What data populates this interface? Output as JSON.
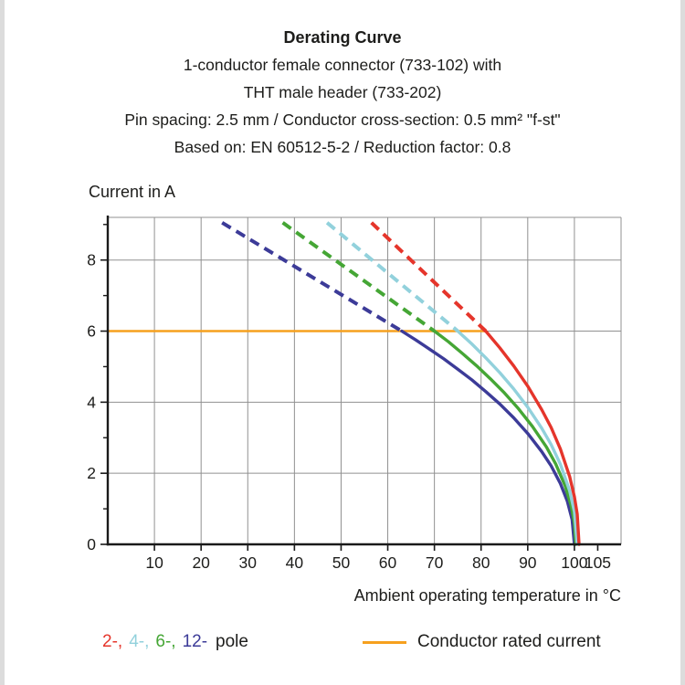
{
  "page": {
    "header": {
      "title": "Derating Curve",
      "lines": [
        "1-conductor female connector (733-102) with",
        "THT male header (733-202)",
        "Pin spacing: 2.5 mm / Conductor cross-section: 0.5 mm² \"f-st\"",
        "Based on: EN 60512-5-2 / Reduction factor: 0.8"
      ]
    },
    "y_axis_title": "Current in A",
    "x_axis_title": "Ambient operating temperature in °C"
  },
  "legend": {
    "pole_items": [
      {
        "label": "2-,",
        "color": "#e5352b"
      },
      {
        "label": "4-,",
        "color": "#92d1dc"
      },
      {
        "label": "6-,",
        "color": "#45a635"
      },
      {
        "label": "12-",
        "color": "#3c3b98"
      }
    ],
    "pole_suffix": "pole",
    "rated_label": "Conductor rated current",
    "rated_color": "#f6a01e"
  },
  "chart_data": {
    "type": "line",
    "title": "Derating Curve",
    "xlabel": "Ambient operating temperature in °C",
    "ylabel": "Current in A",
    "xlim": [
      0,
      110
    ],
    "ylim": [
      0,
      9.2
    ],
    "grid": true,
    "grid_x": [
      10,
      20,
      30,
      40,
      50,
      60,
      70,
      80,
      90,
      100,
      110
    ],
    "grid_y": [
      2,
      4,
      6,
      8
    ],
    "x_tick_labels": [
      10,
      20,
      30,
      40,
      50,
      60,
      70,
      80,
      90,
      100,
      105
    ],
    "y_major_ticks": [
      0,
      2,
      4,
      6,
      8
    ],
    "y_minor_ticks": [
      1,
      3,
      5,
      7,
      9
    ],
    "colors": {
      "grid": "#909090",
      "axis": "#1a1a1a",
      "text": "#1d1d1b"
    },
    "rated_current_line": {
      "name": "Conductor rated current",
      "color": "#f6a01e",
      "value_A": 6,
      "points": [
        [
          0,
          6
        ],
        [
          81,
          6
        ]
      ]
    },
    "series": [
      {
        "id": "12-pole",
        "name": "12-pole",
        "color": "#3c3b98",
        "dashed_points": [
          [
            24.5,
            9.05
          ],
          [
            63,
            6.0
          ]
        ],
        "solid_points": [
          [
            63,
            6.0
          ],
          [
            66,
            5.75
          ],
          [
            69,
            5.49
          ],
          [
            72,
            5.22
          ],
          [
            75,
            4.93
          ],
          [
            78,
            4.63
          ],
          [
            81,
            4.3
          ],
          [
            84,
            3.95
          ],
          [
            87,
            3.56
          ],
          [
            90,
            3.12
          ],
          [
            93,
            2.61
          ],
          [
            95,
            2.21
          ],
          [
            97,
            1.71
          ],
          [
            98.5,
            1.21
          ],
          [
            99.5,
            0.7
          ],
          [
            100,
            0
          ]
        ]
      },
      {
        "id": "6-pole",
        "name": "6-pole",
        "color": "#45a635",
        "dashed_points": [
          [
            37.5,
            9.05
          ],
          [
            70,
            6.0
          ]
        ],
        "solid_points": [
          [
            70,
            6.0
          ],
          [
            73,
            5.7
          ],
          [
            76,
            5.37
          ],
          [
            79,
            5.03
          ],
          [
            82,
            4.66
          ],
          [
            85,
            4.26
          ],
          [
            88,
            3.82
          ],
          [
            91,
            3.32
          ],
          [
            94,
            2.74
          ],
          [
            96,
            2.26
          ],
          [
            98,
            1.65
          ],
          [
            99.3,
            1.09
          ],
          [
            100,
            0.6
          ],
          [
            100.3,
            0
          ]
        ]
      },
      {
        "id": "4-pole",
        "name": "4-pole",
        "color": "#92d1dc",
        "dashed_points": [
          [
            47,
            9.05
          ],
          [
            75,
            6.0
          ]
        ],
        "solid_points": [
          [
            75,
            6.0
          ],
          [
            78,
            5.64
          ],
          [
            81,
            5.25
          ],
          [
            84,
            4.83
          ],
          [
            87,
            4.37
          ],
          [
            90,
            3.86
          ],
          [
            93,
            3.27
          ],
          [
            95,
            2.81
          ],
          [
            97,
            2.25
          ],
          [
            99,
            1.5
          ],
          [
            100,
            0.92
          ],
          [
            100.6,
            0
          ]
        ]
      },
      {
        "id": "2-pole",
        "name": "2-pole",
        "color": "#e5352b",
        "dashed_points": [
          [
            56.5,
            9.05
          ],
          [
            81,
            6.0
          ]
        ],
        "solid_points": [
          [
            81,
            6.0
          ],
          [
            84,
            5.53
          ],
          [
            87,
            5.02
          ],
          [
            90,
            4.45
          ],
          [
            93,
            3.79
          ],
          [
            95,
            3.29
          ],
          [
            97,
            2.68
          ],
          [
            99,
            1.9
          ],
          [
            100,
            1.34
          ],
          [
            100.6,
            0.85
          ],
          [
            101,
            0
          ]
        ]
      }
    ]
  }
}
